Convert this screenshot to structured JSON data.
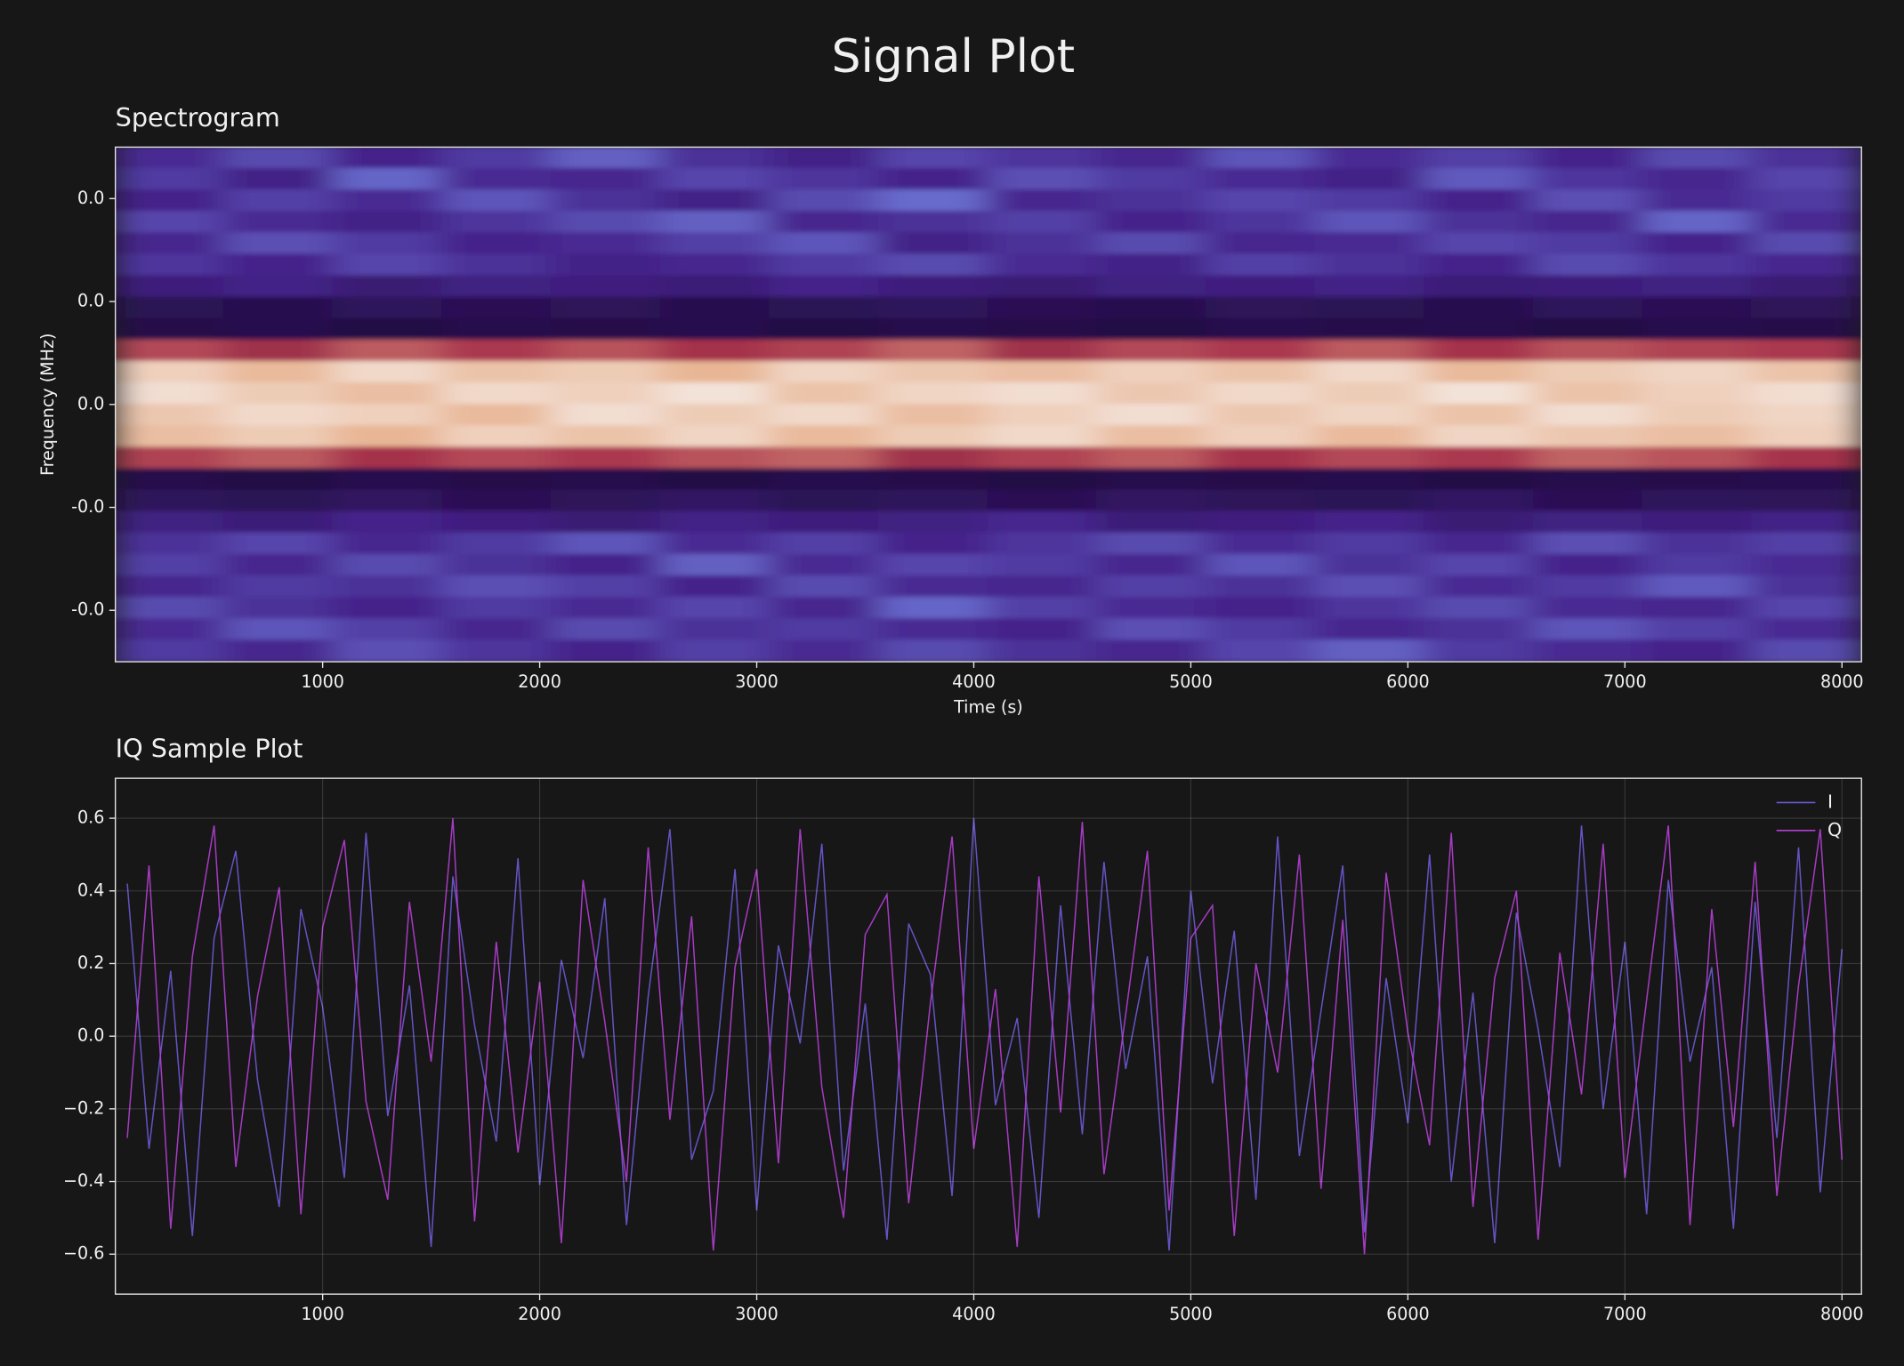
{
  "title": "Signal Plot",
  "chart_data": [
    {
      "type": "heatmap",
      "title": "Spectrogram",
      "xlabel": "Time (s)",
      "ylabel": "Frequency (MHz)",
      "xlim": [
        45,
        8090
      ],
      "ylim": [
        -0.05,
        0.05
      ],
      "xticks": [
        1000,
        2000,
        3000,
        4000,
        5000,
        6000,
        7000,
        8000
      ],
      "yticks": [
        {
          "value": 0.04,
          "label": "0.0"
        },
        {
          "value": 0.02,
          "label": "0.0"
        },
        {
          "value": 0,
          "label": "0.0"
        },
        {
          "value": -0.02,
          "label": "-0.0"
        },
        {
          "value": -0.04,
          "label": "-0.0"
        }
      ],
      "colormap": [
        "#160826",
        "#2c1256",
        "#45238c",
        "#6a6fd0",
        "#4a1848",
        "#a8344c",
        "#e6b08c",
        "#f7efec"
      ],
      "z": [
        [
          0.3,
          0.36,
          0.28,
          0.33,
          0.4,
          0.31,
          0.27,
          0.35,
          0.32,
          0.29,
          0.38,
          0.3,
          0.34,
          0.28,
          0.36,
          0.31
        ],
        [
          0.33,
          0.27,
          0.41,
          0.3,
          0.29,
          0.35,
          0.32,
          0.28,
          0.37,
          0.33,
          0.3,
          0.27,
          0.39,
          0.32,
          0.29,
          0.35
        ],
        [
          0.28,
          0.34,
          0.3,
          0.38,
          0.31,
          0.27,
          0.36,
          0.42,
          0.29,
          0.31,
          0.35,
          0.33,
          0.28,
          0.37,
          0.3,
          0.33
        ],
        [
          0.35,
          0.3,
          0.27,
          0.32,
          0.36,
          0.4,
          0.29,
          0.31,
          0.34,
          0.28,
          0.32,
          0.38,
          0.31,
          0.29,
          0.41,
          0.3
        ],
        [
          0.29,
          0.37,
          0.33,
          0.28,
          0.3,
          0.34,
          0.38,
          0.27,
          0.31,
          0.36,
          0.29,
          0.3,
          0.35,
          0.33,
          0.28,
          0.36
        ],
        [
          0.32,
          0.28,
          0.35,
          0.31,
          0.27,
          0.29,
          0.33,
          0.36,
          0.3,
          0.27,
          0.34,
          0.31,
          0.28,
          0.36,
          0.32,
          0.29
        ],
        [
          0.24,
          0.27,
          0.22,
          0.26,
          0.25,
          0.23,
          0.28,
          0.24,
          0.22,
          0.26,
          0.25,
          0.27,
          0.23,
          0.24,
          0.26,
          0.22
        ],
        [
          0.14,
          0.12,
          0.16,
          0.13,
          0.15,
          0.12,
          0.14,
          0.16,
          0.13,
          0.12,
          0.15,
          0.14,
          0.12,
          0.16,
          0.13,
          0.15
        ],
        [
          0.1,
          0.12,
          0.09,
          0.11,
          0.1,
          0.12,
          0.09,
          0.11,
          0.1,
          0.09,
          0.12,
          0.1,
          0.11,
          0.09,
          0.12,
          0.1
        ],
        [
          0.74,
          0.7,
          0.76,
          0.72,
          0.75,
          0.71,
          0.73,
          0.77,
          0.7,
          0.74,
          0.72,
          0.76,
          0.71,
          0.75,
          0.73,
          0.72
        ],
        [
          0.93,
          0.88,
          0.95,
          0.9,
          0.92,
          0.87,
          0.94,
          0.91,
          0.89,
          0.93,
          0.9,
          0.95,
          0.88,
          0.92,
          0.94,
          0.9
        ],
        [
          0.96,
          0.92,
          0.89,
          0.95,
          0.93,
          0.97,
          0.9,
          0.94,
          0.96,
          0.91,
          0.95,
          0.92,
          0.97,
          0.9,
          0.93,
          0.96
        ],
        [
          0.91,
          0.95,
          0.93,
          0.88,
          0.96,
          0.92,
          0.95,
          0.89,
          0.93,
          0.96,
          0.91,
          0.94,
          0.9,
          0.96,
          0.92,
          0.94
        ],
        [
          0.89,
          0.92,
          0.87,
          0.93,
          0.9,
          0.94,
          0.88,
          0.92,
          0.95,
          0.89,
          0.93,
          0.88,
          0.94,
          0.91,
          0.89,
          0.93
        ],
        [
          0.73,
          0.76,
          0.71,
          0.74,
          0.72,
          0.75,
          0.77,
          0.7,
          0.73,
          0.76,
          0.71,
          0.74,
          0.72,
          0.77,
          0.75,
          0.71
        ],
        [
          0.11,
          0.09,
          0.12,
          0.1,
          0.11,
          0.09,
          0.12,
          0.1,
          0.09,
          0.11,
          0.1,
          0.12,
          0.09,
          0.11,
          0.1,
          0.12
        ],
        [
          0.16,
          0.14,
          0.17,
          0.13,
          0.15,
          0.18,
          0.14,
          0.16,
          0.13,
          0.17,
          0.15,
          0.14,
          0.18,
          0.13,
          0.16,
          0.15
        ],
        [
          0.26,
          0.23,
          0.28,
          0.25,
          0.22,
          0.27,
          0.24,
          0.26,
          0.29,
          0.23,
          0.25,
          0.28,
          0.22,
          0.26,
          0.24,
          0.27
        ],
        [
          0.31,
          0.35,
          0.29,
          0.33,
          0.38,
          0.3,
          0.34,
          0.28,
          0.32,
          0.36,
          0.3,
          0.33,
          0.29,
          0.37,
          0.31,
          0.34
        ],
        [
          0.34,
          0.29,
          0.36,
          0.31,
          0.28,
          0.4,
          0.3,
          0.35,
          0.33,
          0.29,
          0.38,
          0.31,
          0.35,
          0.28,
          0.33,
          0.3
        ],
        [
          0.29,
          0.33,
          0.31,
          0.37,
          0.34,
          0.28,
          0.36,
          0.3,
          0.29,
          0.34,
          0.31,
          0.37,
          0.3,
          0.33,
          0.39,
          0.31
        ],
        [
          0.36,
          0.31,
          0.28,
          0.33,
          0.3,
          0.35,
          0.29,
          0.41,
          0.34,
          0.3,
          0.28,
          0.32,
          0.36,
          0.3,
          0.29,
          0.35
        ],
        [
          0.3,
          0.38,
          0.34,
          0.29,
          0.36,
          0.31,
          0.33,
          0.3,
          0.28,
          0.37,
          0.33,
          0.29,
          0.31,
          0.38,
          0.34,
          0.3
        ],
        [
          0.33,
          0.29,
          0.37,
          0.32,
          0.28,
          0.34,
          0.3,
          0.36,
          0.31,
          0.29,
          0.35,
          0.4,
          0.33,
          0.3,
          0.28,
          0.36
        ]
      ]
    },
    {
      "type": "line",
      "title": "IQ Sample Plot",
      "xlim": [
        45,
        8090
      ],
      "ylim": [
        -0.71,
        0.71
      ],
      "xticks": [
        1000,
        2000,
        3000,
        4000,
        5000,
        6000,
        7000,
        8000
      ],
      "yticks": [
        {
          "value": -0.6,
          "label": "−0.6"
        },
        {
          "value": -0.4,
          "label": "−0.4"
        },
        {
          "value": -0.2,
          "label": "−0.2"
        },
        {
          "value": 0,
          "label": "0.0"
        },
        0.2,
        0.4,
        0.6
      ],
      "grid": true,
      "legend": "upper right",
      "x": [
        100,
        200,
        300,
        400,
        500,
        600,
        700,
        800,
        900,
        1000,
        1100,
        1200,
        1300,
        1400,
        1500,
        1600,
        1700,
        1800,
        1900,
        2000,
        2100,
        2200,
        2300,
        2400,
        2500,
        2600,
        2700,
        2800,
        2900,
        3000,
        3100,
        3200,
        3300,
        3400,
        3500,
        3600,
        3700,
        3800,
        3900,
        4000,
        4100,
        4200,
        4300,
        4400,
        4500,
        4600,
        4700,
        4800,
        4900,
        5000,
        5100,
        5200,
        5300,
        5400,
        5500,
        5600,
        5700,
        5800,
        5900,
        6000,
        6100,
        6200,
        6300,
        6400,
        6500,
        6600,
        6700,
        6800,
        6900,
        7000,
        7100,
        7200,
        7300,
        7400,
        7500,
        7600,
        7700,
        7800,
        7900,
        8000
      ],
      "series": [
        {
          "name": "I",
          "color": "#6b5bd6",
          "values": [
            0.42,
            -0.31,
            0.18,
            -0.55,
            0.27,
            0.51,
            -0.12,
            -0.47,
            0.35,
            0.08,
            -0.39,
            0.56,
            -0.22,
            0.14,
            -0.58,
            0.44,
            0.03,
            -0.29,
            0.49,
            -0.41,
            0.21,
            -0.06,
            0.38,
            -0.52,
            0.11,
            0.57,
            -0.34,
            -0.15,
            0.46,
            -0.48,
            0.25,
            -0.02,
            0.53,
            -0.37,
            0.09,
            -0.56,
            0.31,
            0.17,
            -0.44,
            0.6,
            -0.19,
            0.05,
            -0.5,
            0.36,
            -0.27,
            0.48,
            -0.09,
            0.22,
            -0.59,
            0.4,
            -0.13,
            0.29,
            -0.45,
            0.55,
            -0.33,
            0.07,
            0.47,
            -0.54,
            0.16,
            -0.24,
            0.5,
            -0.4,
            0.12,
            -0.57,
            0.34,
            0.02,
            -0.36,
            0.58,
            -0.2,
            0.26,
            -0.49,
            0.43,
            -0.07,
            0.19,
            -0.53,
            0.37,
            -0.28,
            0.52,
            -0.43,
            0.24
          ]
        },
        {
          "name": "Q",
          "color": "#b63fd6",
          "values": [
            -0.28,
            0.47,
            -0.53,
            0.22,
            0.58,
            -0.36,
            0.11,
            0.41,
            -0.49,
            0.3,
            0.54,
            -0.18,
            -0.45,
            0.37,
            -0.07,
            0.6,
            -0.51,
            0.26,
            -0.32,
            0.15,
            -0.57,
            0.43,
            0.04,
            -0.4,
            0.52,
            -0.23,
            0.33,
            -0.59,
            0.19,
            0.46,
            -0.35,
            0.57,
            -0.14,
            -0.5,
            0.28,
            0.39,
            -0.46,
            0.09,
            0.55,
            -0.31,
            0.13,
            -0.58,
            0.44,
            -0.21,
            0.59,
            -0.38,
            0.06,
            0.51,
            -0.48,
            0.27,
            0.36,
            -0.55,
            0.2,
            -0.1,
            0.5,
            -0.42,
            0.32,
            -0.6,
            0.45,
            0.01,
            -0.3,
            0.56,
            -0.47,
            0.16,
            0.4,
            -0.56,
            0.23,
            -0.16,
            0.53,
            -0.39,
            0.1,
            0.58,
            -0.52,
            0.35,
            -0.25,
            0.48,
            -0.44,
            0.14,
            0.57,
            -0.34
          ]
        }
      ]
    }
  ]
}
